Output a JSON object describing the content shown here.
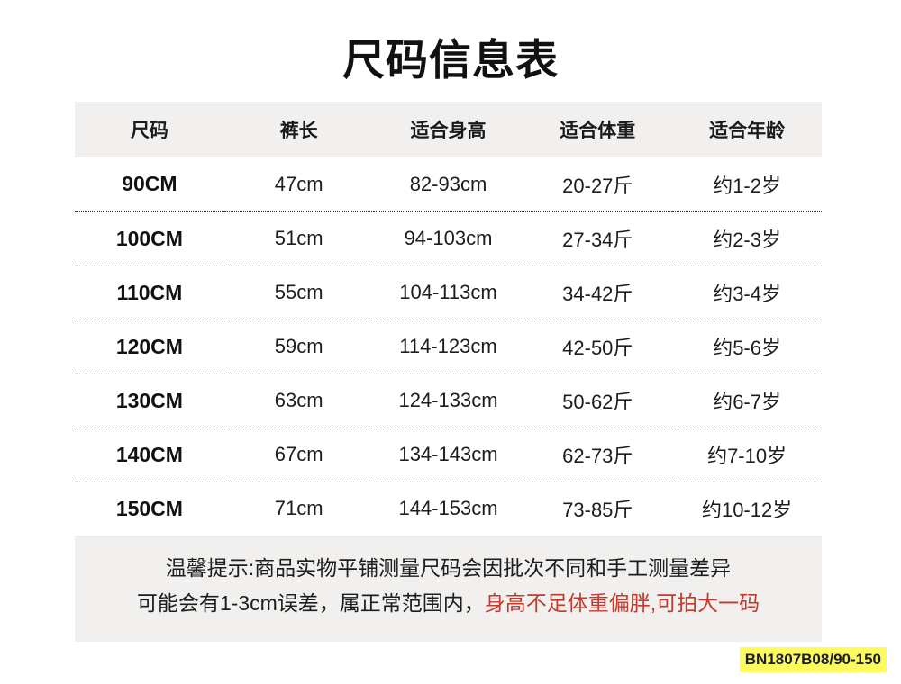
{
  "title": "尺码信息表",
  "table": {
    "columns": [
      "尺码",
      "裤长",
      "适合身高",
      "适合体重",
      "适合年龄"
    ],
    "rows": [
      [
        "90CM",
        "47cm",
        "82-93cm",
        "20-27斤",
        "约1-2岁"
      ],
      [
        "100CM",
        "51cm",
        "94-103cm",
        "27-34斤",
        "约2-3岁"
      ],
      [
        "110CM",
        "55cm",
        "104-113cm",
        "34-42斤",
        "约3-4岁"
      ],
      [
        "120CM",
        "59cm",
        "114-123cm",
        "42-50斤",
        "约5-6岁"
      ],
      [
        "130CM",
        "63cm",
        "124-133cm",
        "50-62斤",
        "约6-7岁"
      ],
      [
        "140CM",
        "67cm",
        "134-143cm",
        "62-73斤",
        "约7-10岁"
      ],
      [
        "150CM",
        "71cm",
        "144-153cm",
        "73-85斤",
        "约10-12岁"
      ]
    ]
  },
  "notice": {
    "line1": "温馨提示:商品实物平铺测量尺码会因批次不同和手工测量差异",
    "line2_black": "可能会有1-3cm误差，属正常范围内，",
    "line2_red": "身高不足体重偏胖,可拍大一码"
  },
  "product_code": "BN1807B08/90-150",
  "colors": {
    "band_bg": "#f1f0ee",
    "text": "#1c1c1c",
    "warning_red": "#c43a2c",
    "code_bg": "#fbfb5e",
    "code_text": "#1b1b35"
  }
}
